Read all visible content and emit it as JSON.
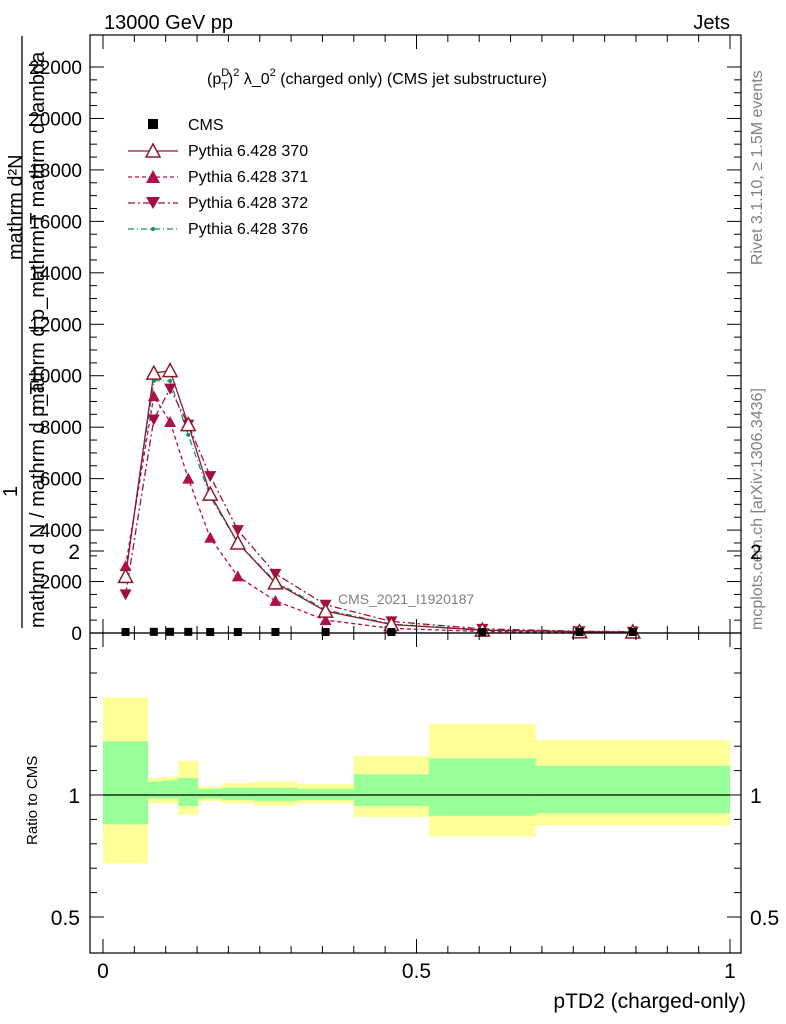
{
  "header": {
    "energy_label": "13000 GeV pp",
    "process_label": "Jets"
  },
  "side_labels": {
    "rivet": "Rivet 3.1.10, ≥ 1.5M events",
    "mcplots": "mcplots.cern.ch [arXiv:1306.3436]"
  },
  "colors": {
    "pythia_370": "#8b1a2a",
    "pythia_371": "#b0104a",
    "pythia_372": "#a0103e",
    "pythia_376": "#109070",
    "band_inner": "#99ff99",
    "band_outer": "#ffff99"
  },
  "chart_data": [
    {
      "type": "line",
      "title": "(p_T^D)^2 λ_0^2 (charged only) (CMS jet substructure)",
      "title_parts": {
        "p": "(p",
        "sup_d": "D",
        "sub_t": "T",
        "close": ")",
        "sup_2": "2",
        "lambda": " λ_0",
        "sup_2b": "2",
        "rest": " (charged only) (CMS jet substructure)"
      },
      "ylabel_top": "mathrm d²N",
      "ylabel_mid": "mathrm d p_mathrm T mathrm d lambda",
      "ylabel_frac_num": "1",
      "ylabel_bottom": "mathrm d N / mathrm d p_T",
      "watermark": "CMS_2021_I1920187",
      "xlim": [
        0,
        1
      ],
      "ylim": [
        0,
        22000
      ],
      "yticks": [
        0,
        2000,
        4000,
        6000,
        8000,
        10000,
        12000,
        14000,
        16000,
        18000,
        20000,
        22000
      ],
      "ytick_labels": [
        "0",
        "2000",
        "4000",
        "6000",
        "8000",
        "10000",
        "12000",
        "14000",
        "16000",
        "18000",
        "20000",
        "22000"
      ],
      "legend_position": "top-left",
      "series": [
        {
          "name": "CMS",
          "x": [
            0.036,
            0.081,
            0.107,
            0.136,
            0.171,
            0.215,
            0.275,
            0.355,
            0.46,
            0.605,
            0.76,
            0.845
          ],
          "y": [
            30,
            45,
            45,
            45,
            40,
            35,
            25,
            15,
            8,
            4,
            2,
            1
          ]
        },
        {
          "name": "Pythia 6.428 370",
          "x": [
            0.036,
            0.081,
            0.107,
            0.136,
            0.171,
            0.215,
            0.275,
            0.355,
            0.46,
            0.605,
            0.76,
            0.845
          ],
          "y": [
            2200,
            10100,
            10200,
            8100,
            5400,
            3500,
            1950,
            850,
            330,
            110,
            50,
            40
          ]
        },
        {
          "name": "Pythia 6.428 371",
          "x": [
            0.036,
            0.081,
            0.107,
            0.136,
            0.171,
            0.215,
            0.275,
            0.355,
            0.46,
            0.605,
            0.76,
            0.845
          ],
          "y": [
            2600,
            9200,
            8200,
            6000,
            3700,
            2200,
            1250,
            500,
            180,
            60,
            25,
            15
          ]
        },
        {
          "name": "Pythia 6.428 372",
          "x": [
            0.036,
            0.081,
            0.107,
            0.136,
            0.171,
            0.215,
            0.275,
            0.355,
            0.46,
            0.605,
            0.76,
            0.845
          ],
          "y": [
            1500,
            8300,
            9500,
            8100,
            6100,
            4000,
            2300,
            1100,
            450,
            160,
            70,
            50
          ]
        },
        {
          "name": "Pythia 6.428 376",
          "x": [
            0.036,
            0.081,
            0.107,
            0.136,
            0.171,
            0.215,
            0.275,
            0.355,
            0.46,
            0.605,
            0.76,
            0.845
          ],
          "y": [
            2300,
            9800,
            9800,
            7700,
            5300,
            3500,
            2000,
            900,
            350,
            120,
            55,
            40
          ]
        }
      ]
    },
    {
      "type": "area",
      "ylabel": "Ratio to CMS",
      "xlabel": "pTD2 (charged-only)",
      "xlim": [
        0,
        1
      ],
      "ylim": [
        0.3,
        2.3
      ],
      "xticks": [
        0,
        0.5,
        1
      ],
      "xtick_labels": [
        "0",
        "0.5",
        "1"
      ],
      "yticks": [
        0.5,
        1,
        2
      ],
      "ytick_labels": [
        "0.5",
        "1",
        "2"
      ],
      "reference_line": 1,
      "bins": [
        {
          "x0": 0.0,
          "x1": 0.072,
          "inner": [
            0.88,
            1.22
          ],
          "outer": [
            0.72,
            1.4
          ]
        },
        {
          "x0": 0.072,
          "x1": 0.095,
          "inner": [
            0.985,
            1.055
          ],
          "outer": [
            0.965,
            1.07
          ]
        },
        {
          "x0": 0.095,
          "x1": 0.12,
          "inner": [
            0.985,
            1.06
          ],
          "outer": [
            0.965,
            1.075
          ]
        },
        {
          "x0": 0.12,
          "x1": 0.152,
          "inner": [
            0.955,
            1.07
          ],
          "outer": [
            0.92,
            1.14
          ]
        },
        {
          "x0": 0.152,
          "x1": 0.19,
          "inner": [
            0.985,
            1.025
          ],
          "outer": [
            0.975,
            1.035
          ]
        },
        {
          "x0": 0.19,
          "x1": 0.24,
          "inner": [
            0.98,
            1.03
          ],
          "outer": [
            0.965,
            1.05
          ]
        },
        {
          "x0": 0.24,
          "x1": 0.31,
          "inner": [
            0.975,
            1.03
          ],
          "outer": [
            0.955,
            1.055
          ]
        },
        {
          "x0": 0.31,
          "x1": 0.4,
          "inner": [
            0.98,
            1.025
          ],
          "outer": [
            0.965,
            1.045
          ]
        },
        {
          "x0": 0.4,
          "x1": 0.52,
          "inner": [
            0.955,
            1.085
          ],
          "outer": [
            0.91,
            1.16
          ]
        },
        {
          "x0": 0.52,
          "x1": 0.69,
          "inner": [
            0.915,
            1.15
          ],
          "outer": [
            0.83,
            1.29
          ]
        },
        {
          "x0": 0.69,
          "x1": 1.0,
          "inner": [
            0.925,
            1.12
          ],
          "outer": [
            0.875,
            1.225
          ]
        }
      ]
    }
  ]
}
